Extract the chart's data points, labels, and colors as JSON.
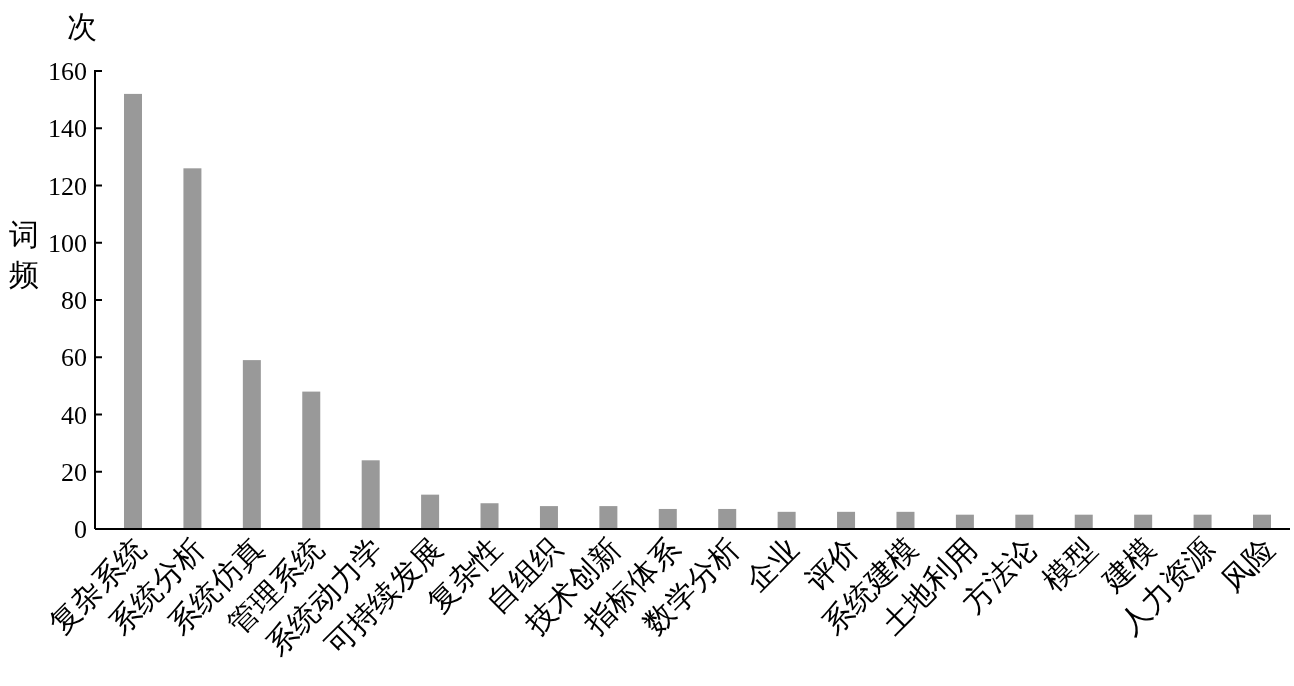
{
  "chart_data": {
    "type": "bar",
    "ylabel": "词频",
    "annotations": [
      "次"
    ],
    "categories": [
      "复杂系统",
      "系统分析",
      "系统仿真",
      "管理系统",
      "系统动力学",
      "可持续发展",
      "复杂性",
      "自组织",
      "技术创新",
      "指标体系",
      "数学分析",
      "企业",
      "评价",
      "系统建模",
      "土地利用",
      "方法论",
      "模型",
      "建模",
      "人力资源",
      "风险"
    ],
    "values": [
      152,
      126,
      59,
      48,
      24,
      12,
      9,
      8,
      8,
      7,
      7,
      6,
      6,
      6,
      5,
      5,
      5,
      5,
      5,
      5
    ],
    "color": "#999999",
    "ylim": [
      0,
      160
    ],
    "yticks": [
      0,
      20,
      40,
      60,
      80,
      100,
      120,
      140,
      160
    ]
  }
}
